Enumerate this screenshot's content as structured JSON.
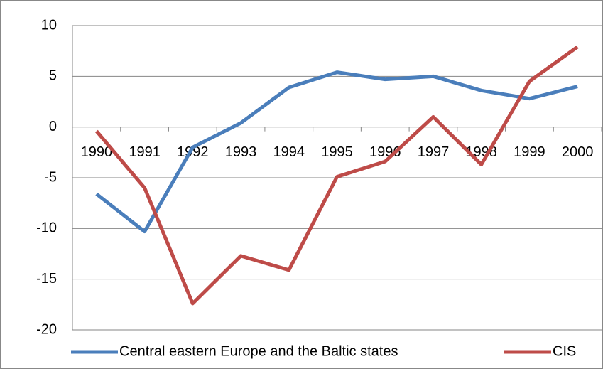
{
  "chart_data": {
    "type": "line",
    "categories": [
      "1990",
      "1991",
      "1992",
      "1993",
      "1994",
      "1995",
      "1996",
      "1997",
      "1998",
      "1999",
      "2000"
    ],
    "series": [
      {
        "name": "Central eastern Europe and the Baltic states",
        "color": "#4a7ebb",
        "values": [
          -6.6,
          -10.3,
          -2.0,
          0.4,
          3.9,
          5.4,
          4.7,
          5.0,
          3.6,
          2.8,
          4.0
        ]
      },
      {
        "name": "CIS",
        "color": "#be4b48",
        "values": [
          -0.4,
          -6.0,
          -17.4,
          -12.7,
          -14.1,
          -4.9,
          -3.4,
          1.0,
          -3.7,
          4.5,
          7.9
        ]
      }
    ],
    "ylim": [
      -20,
      10
    ],
    "yticks": [
      10,
      5,
      0,
      -5,
      -10,
      -15,
      -20
    ],
    "grid": true,
    "legend": "bottom"
  }
}
